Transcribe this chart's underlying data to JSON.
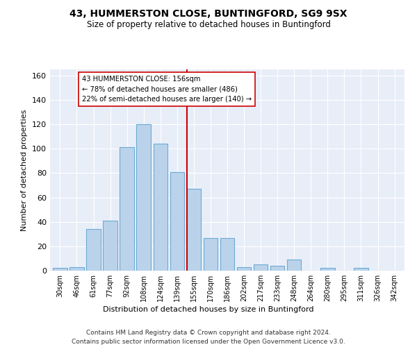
{
  "title": "43, HUMMERSTON CLOSE, BUNTINGFORD, SG9 9SX",
  "subtitle": "Size of property relative to detached houses in Buntingford",
  "xlabel": "Distribution of detached houses by size in Buntingford",
  "ylabel": "Number of detached properties",
  "bar_labels": [
    "30sqm",
    "46sqm",
    "61sqm",
    "77sqm",
    "92sqm",
    "108sqm",
    "124sqm",
    "139sqm",
    "155sqm",
    "170sqm",
    "186sqm",
    "202sqm",
    "217sqm",
    "233sqm",
    "248sqm",
    "264sqm",
    "280sqm",
    "295sqm",
    "311sqm",
    "326sqm",
    "342sqm"
  ],
  "bar_values": [
    2,
    3,
    34,
    41,
    101,
    120,
    104,
    81,
    67,
    27,
    27,
    3,
    5,
    4,
    9,
    0,
    2,
    0,
    2,
    0,
    0
  ],
  "bar_color": "#bad3eb",
  "bar_edge_color": "#6aaad4",
  "vline_color": "#cc0000",
  "annotation_text": "43 HUMMERSTON CLOSE: 156sqm\n← 78% of detached houses are smaller (486)\n22% of semi-detached houses are larger (140) →",
  "annotation_box_facecolor": "#ffffff",
  "annotation_box_edgecolor": "#cc0000",
  "ylim": [
    0,
    165
  ],
  "yticks": [
    0,
    20,
    40,
    60,
    80,
    100,
    120,
    140,
    160
  ],
  "plot_bg_color": "#e8eef8",
  "grid_color": "#ffffff",
  "footer_line1": "Contains HM Land Registry data © Crown copyright and database right 2024.",
  "footer_line2": "Contains public sector information licensed under the Open Government Licence v3.0."
}
